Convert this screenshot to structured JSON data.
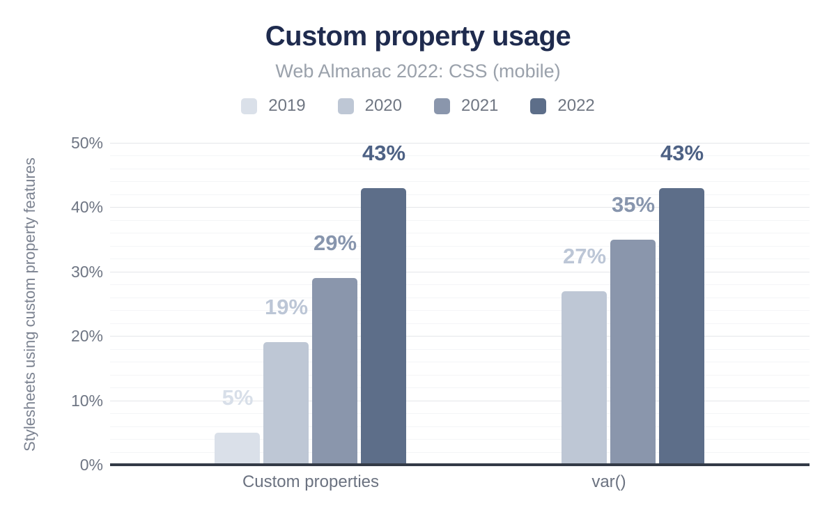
{
  "chart_data": {
    "type": "bar",
    "title": "Custom property usage",
    "subtitle": "Web Almanac 2022: CSS (mobile)",
    "ylabel": "Stylesheets using custom property features",
    "xlabel": "",
    "categories": [
      "Custom properties",
      "var()"
    ],
    "series": [
      {
        "name": "2019",
        "values": [
          5,
          null
        ],
        "color": "#dae0e9",
        "label_color": "#d8dfe9"
      },
      {
        "name": "2020",
        "values": [
          19,
          27
        ],
        "color": "#bec7d5",
        "label_color": "#bcc6d6"
      },
      {
        "name": "2021",
        "values": [
          29,
          35
        ],
        "color": "#8a96ac",
        "label_color": "#8795ad"
      },
      {
        "name": "2022",
        "values": [
          43,
          43
        ],
        "color": "#5d6e89",
        "label_color": "#4d6184"
      }
    ],
    "value_label_format": "{v}%",
    "ylim": [
      0,
      50
    ],
    "yticks": [
      "0%",
      "10%",
      "20%",
      "30%",
      "40%",
      "50%"
    ],
    "grid": {
      "major_step": 10,
      "minor_step": 2
    },
    "legend_position": "top",
    "colors": {
      "title": "#1f2b4e",
      "subtitle": "#9aa1ab",
      "axis_line": "#333a46",
      "tick_label": "#6e7583",
      "category_label": "#6b7280",
      "legend_label": "#6f7682",
      "y_axis_title": "#7b8290",
      "grid_major": "#e4e6e9",
      "grid_minor": "#f4f5f7",
      "background": "#ffffff"
    }
  }
}
